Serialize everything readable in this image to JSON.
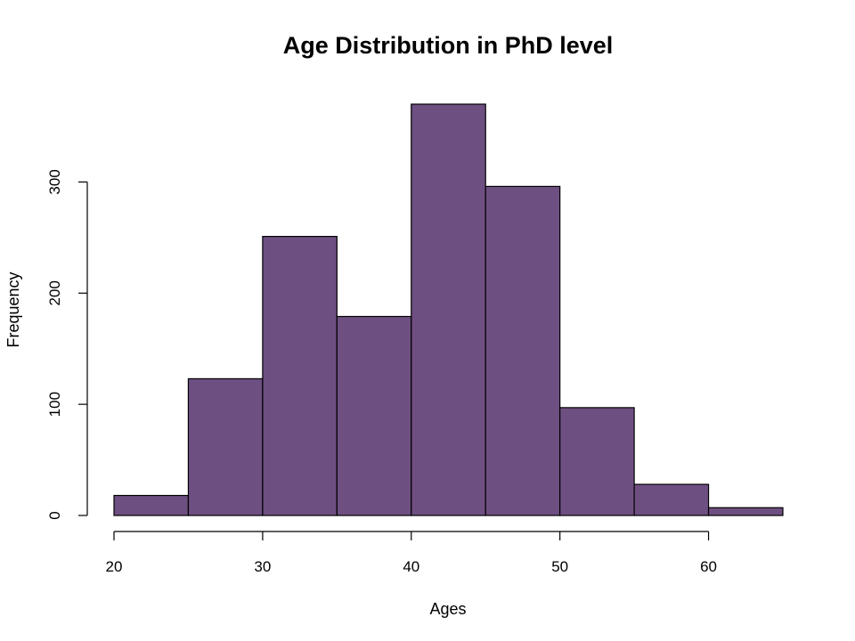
{
  "chart_data": {
    "type": "bar",
    "title": "Age Distribution in PhD level",
    "xlabel": "Ages",
    "ylabel": "Frequency",
    "bins": [
      {
        "start": 20,
        "end": 25,
        "count": 18
      },
      {
        "start": 25,
        "end": 30,
        "count": 123
      },
      {
        "start": 30,
        "end": 35,
        "count": 251
      },
      {
        "start": 35,
        "end": 40,
        "count": 179
      },
      {
        "start": 40,
        "end": 45,
        "count": 370
      },
      {
        "start": 45,
        "end": 50,
        "count": 296
      },
      {
        "start": 50,
        "end": 55,
        "count": 97
      },
      {
        "start": 55,
        "end": 60,
        "count": 28
      },
      {
        "start": 60,
        "end": 65,
        "count": 7
      }
    ],
    "x_ticks": [
      20,
      30,
      40,
      50,
      60
    ],
    "y_ticks": [
      0,
      100,
      200,
      300
    ],
    "xlim": [
      20,
      65
    ],
    "ylim": [
      0,
      370
    ],
    "bar_color": "#6e4f82",
    "grid": false
  }
}
